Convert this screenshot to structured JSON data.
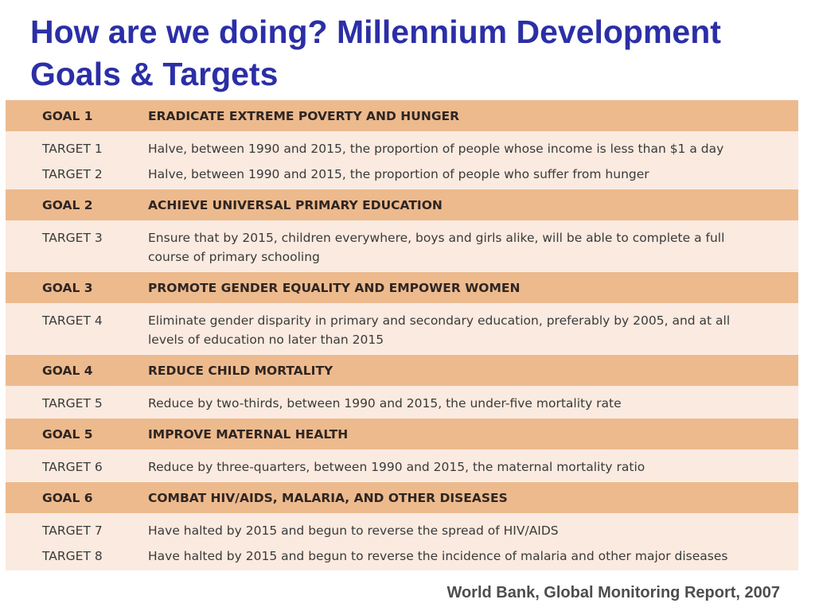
{
  "title": "How are we doing?  Millennium Development Goals & Targets",
  "goals": [
    {
      "id": "GOAL 1",
      "title": "ERADICATE EXTREME POVERTY AND HUNGER",
      "targets": [
        {
          "id": "TARGET 1",
          "text": "Halve, between 1990 and 2015, the proportion of people whose income is less than $1 a day"
        },
        {
          "id": "TARGET 2",
          "text": "Halve, between 1990 and 2015, the proportion of people who suffer from hunger"
        }
      ]
    },
    {
      "id": "GOAL 2",
      "title": "ACHIEVE UNIVERSAL PRIMARY EDUCATION",
      "targets": [
        {
          "id": "TARGET 3",
          "text": "Ensure that by 2015, children everywhere, boys and girls alike, will be able to complete a full course of primary schooling"
        }
      ]
    },
    {
      "id": "GOAL 3",
      "title": "PROMOTE GENDER EQUALITY AND EMPOWER WOMEN",
      "targets": [
        {
          "id": "TARGET 4",
          "text": "Eliminate gender disparity in primary and secondary education, preferably by 2005, and at all levels of education no later than 2015"
        }
      ]
    },
    {
      "id": "GOAL 4",
      "title": "REDUCE CHILD MORTALITY",
      "targets": [
        {
          "id": "TARGET 5",
          "text": "Reduce by two-thirds, between 1990 and 2015, the under-five mortality rate"
        }
      ]
    },
    {
      "id": "GOAL 5",
      "title": "IMPROVE MATERNAL HEALTH",
      "targets": [
        {
          "id": "TARGET 6",
          "text": "Reduce by three-quarters, between 1990 and 2015, the maternal mortality ratio"
        }
      ]
    },
    {
      "id": "GOAL 6",
      "title": "COMBAT HIV/AIDS, MALARIA, AND OTHER DISEASES",
      "targets": [
        {
          "id": "TARGET 7",
          "text": "Have halted by 2015 and begun to reverse the spread of HIV/AIDS"
        },
        {
          "id": "TARGET 8",
          "text": "Have halted by 2015 and begun to reverse the incidence of malaria and other major diseases"
        }
      ]
    }
  ],
  "source": "World Bank, Global Monitoring Report, 2007",
  "colors": {
    "title": "#2b2fa6",
    "goal_band": "#edba8e",
    "target_band": "#faeae0"
  }
}
